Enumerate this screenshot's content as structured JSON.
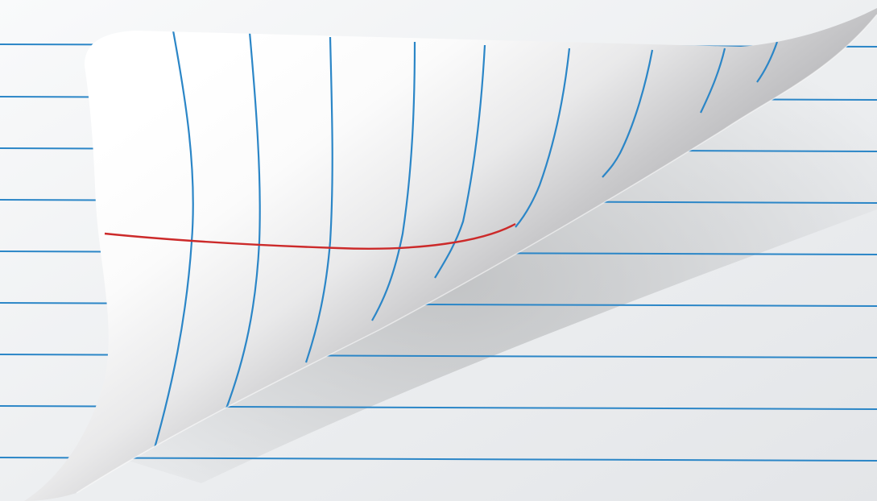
{
  "scene": {
    "subject": "curling-notebook-page-corner",
    "colors": {
      "paper": "#f4f5f6",
      "paper_shadow": "#d7d8da",
      "rule_line": "#2b86c7",
      "margin_line": "#cc2a2a",
      "curl_light": "#ffffff",
      "curl_dark": "#8d8e90"
    }
  }
}
